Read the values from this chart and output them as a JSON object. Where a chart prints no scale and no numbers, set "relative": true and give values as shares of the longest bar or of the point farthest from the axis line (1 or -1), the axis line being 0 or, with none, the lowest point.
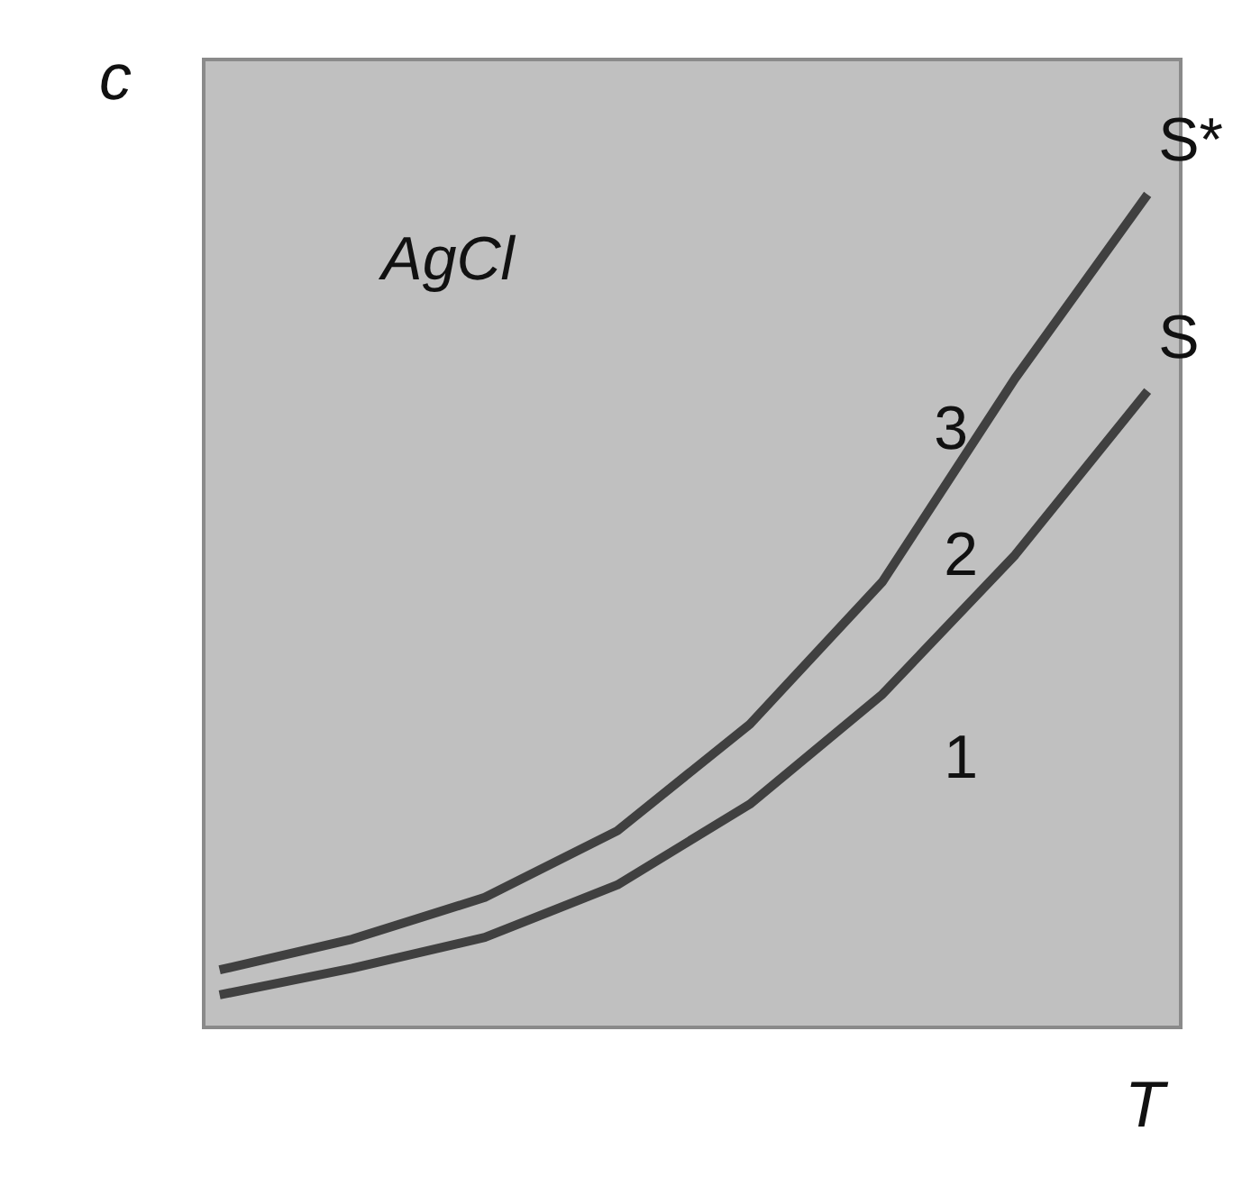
{
  "chart_data": {
    "type": "line",
    "relative": true,
    "xlabel": "T",
    "ylabel": "c",
    "categories": [
      null,
      null,
      null,
      null,
      null,
      null,
      null,
      null
    ],
    "series": [
      {
        "name": "S*",
        "color": "#404040",
        "values": [
          0.069,
          0.106,
          0.156,
          0.236,
          0.364,
          0.535,
          0.779,
          1
        ]
      },
      {
        "name": "S",
        "color": "#404040",
        "values": [
          0.039,
          0.071,
          0.108,
          0.171,
          0.268,
          0.4,
          0.567,
          0.764
        ]
      }
    ],
    "annotations": [
      "AgCl",
      "3",
      "2",
      "1"
    ],
    "grid": false,
    "legend": false,
    "marker": "none",
    "line_style": "solid"
  }
}
